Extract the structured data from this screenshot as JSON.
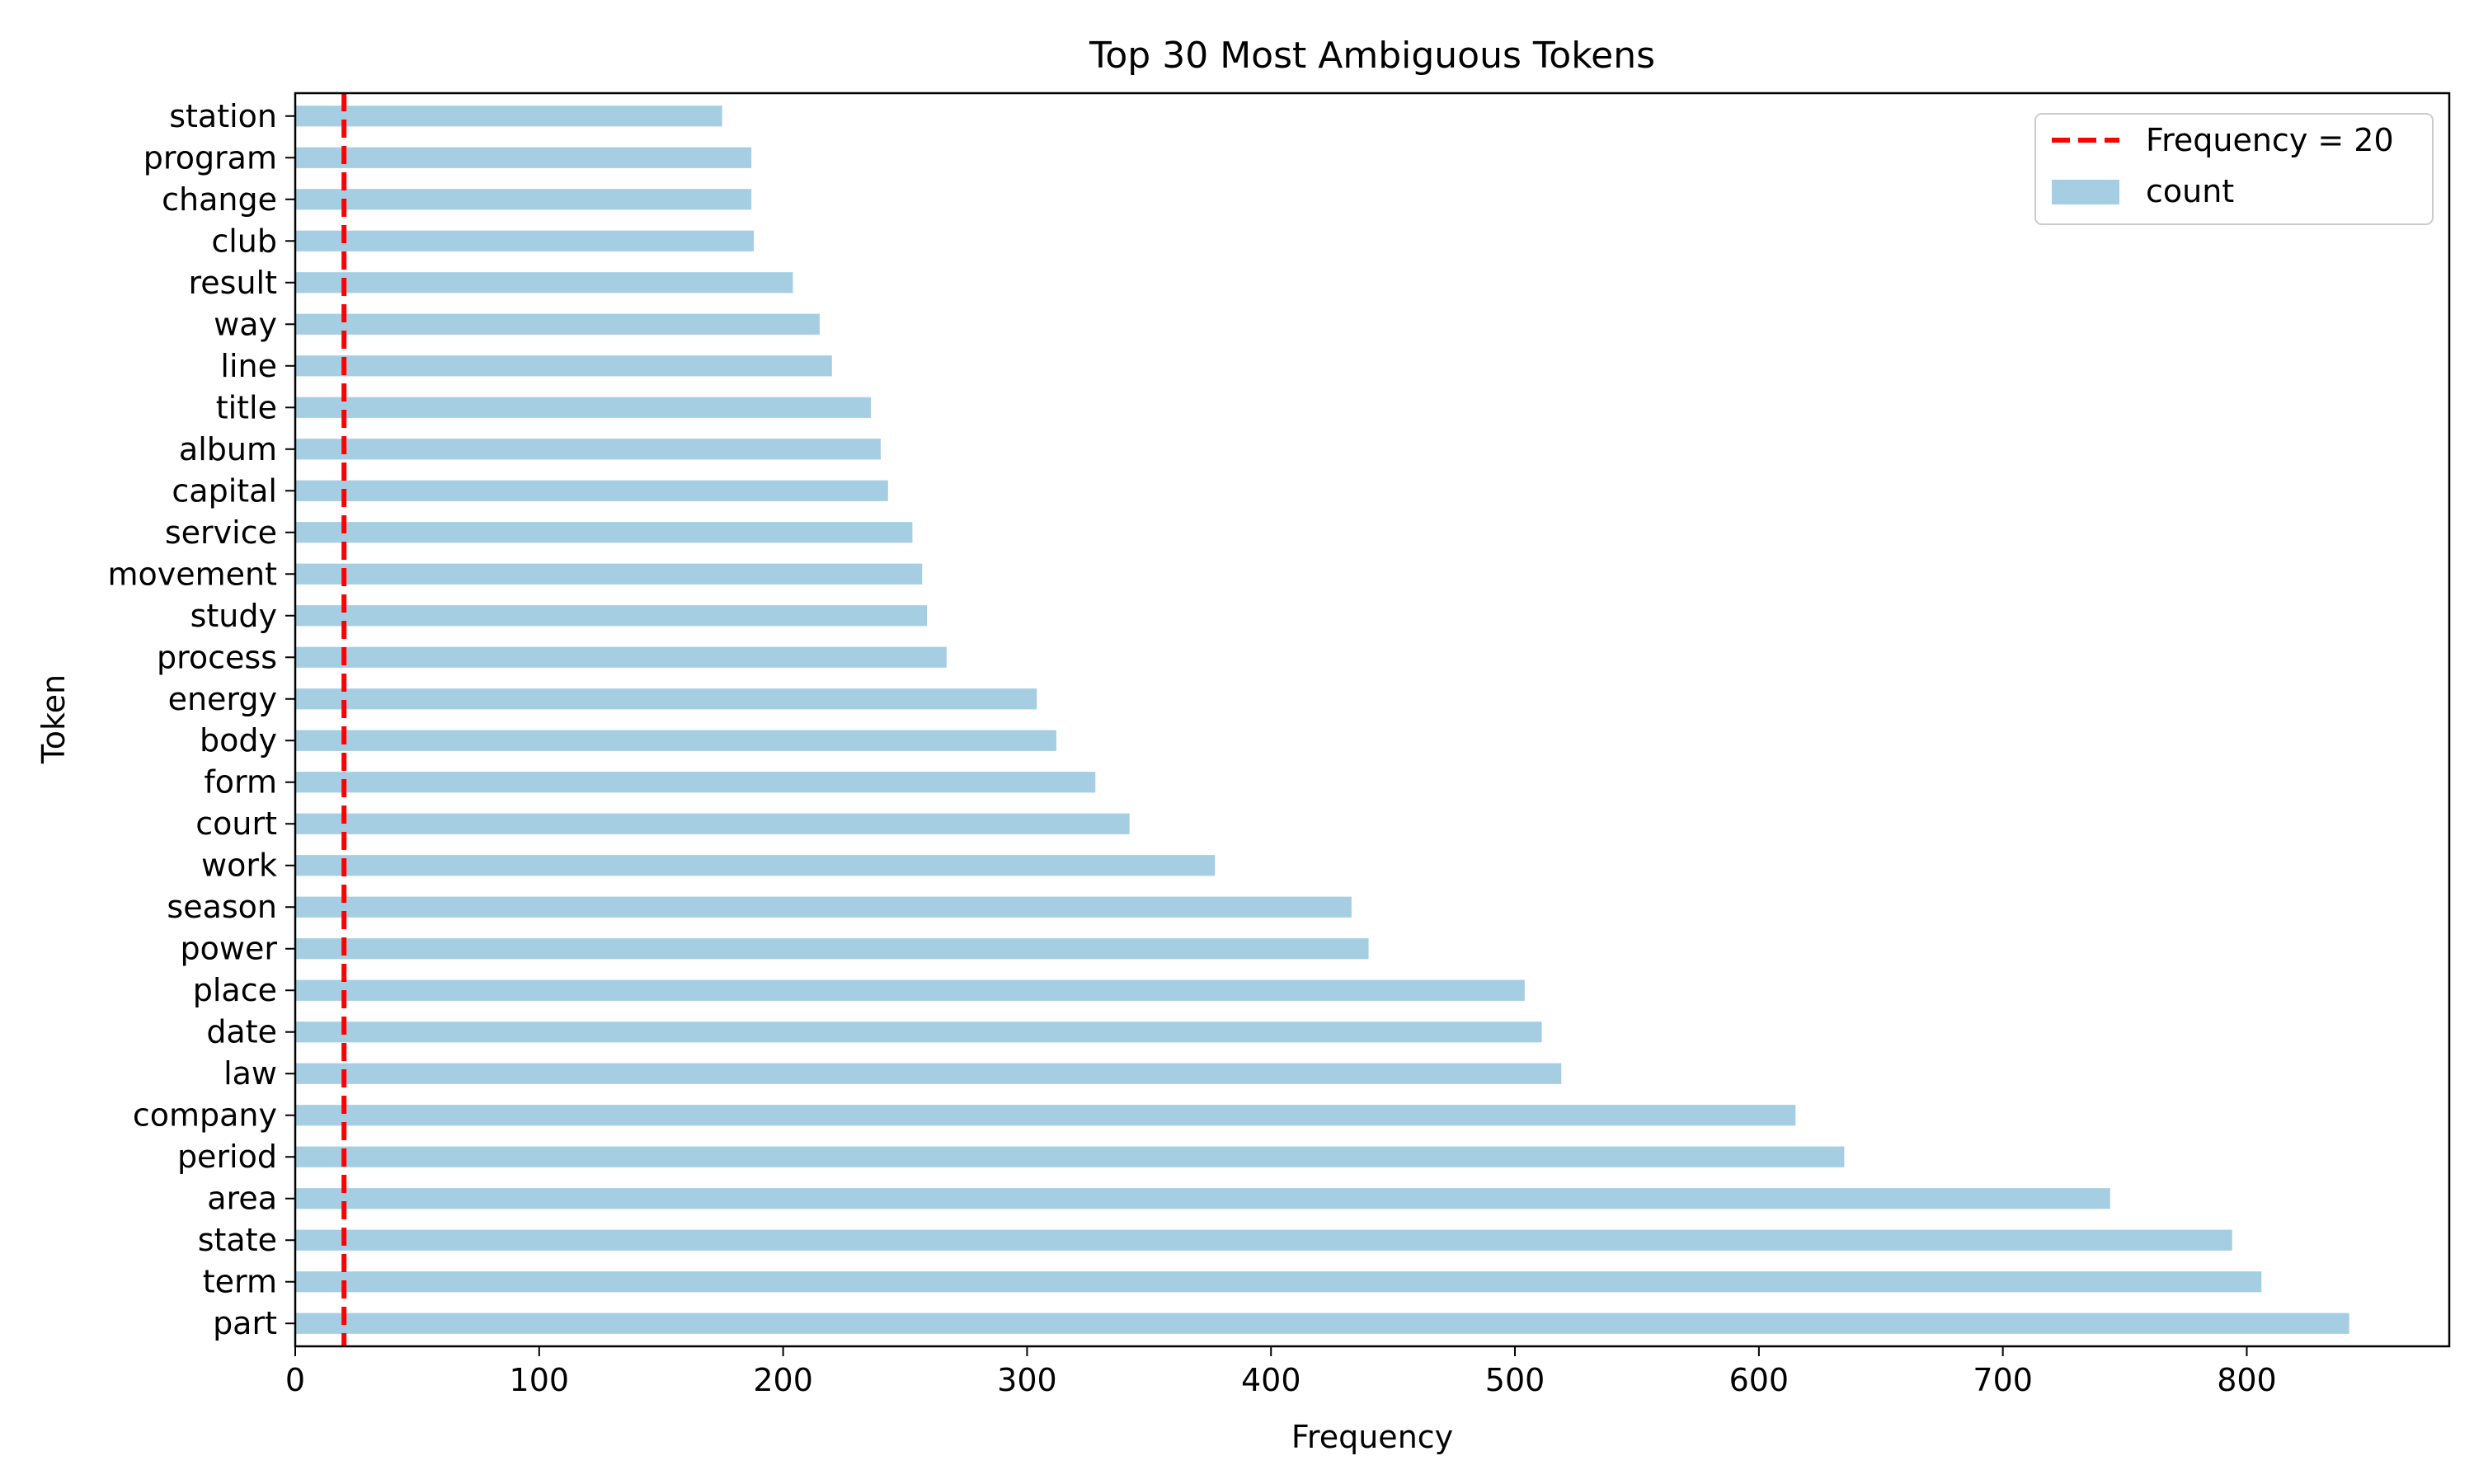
{
  "chart_data": {
    "type": "bar",
    "orientation": "horizontal",
    "title": "Top 30 Most Ambiguous Tokens",
    "xlabel": "Frequency",
    "ylabel": "Token",
    "xlim": [
      0,
      883
    ],
    "xticks": [
      0,
      100,
      200,
      300,
      400,
      500,
      600,
      700,
      800
    ],
    "grid": false,
    "legend_position": "top-right",
    "bar_color": "#a6cee3",
    "reference_line": {
      "label": "Frequency = 20",
      "value": 20,
      "color": "#ff0000",
      "style": "dashed"
    },
    "series": [
      {
        "name": "count",
        "color": "#a6cee3",
        "categories": [
          "part",
          "term",
          "state",
          "area",
          "period",
          "company",
          "law",
          "date",
          "place",
          "power",
          "season",
          "work",
          "court",
          "form",
          "body",
          "energy",
          "process",
          "study",
          "movement",
          "service",
          "capital",
          "album",
          "title",
          "line",
          "way",
          "result",
          "club",
          "change",
          "program",
          "station"
        ],
        "values": [
          842,
          806,
          794,
          744,
          635,
          615,
          519,
          511,
          504,
          440,
          433,
          377,
          342,
          328,
          312,
          304,
          267,
          259,
          257,
          253,
          243,
          240,
          236,
          220,
          215,
          204,
          188,
          187,
          187,
          175
        ]
      }
    ]
  }
}
